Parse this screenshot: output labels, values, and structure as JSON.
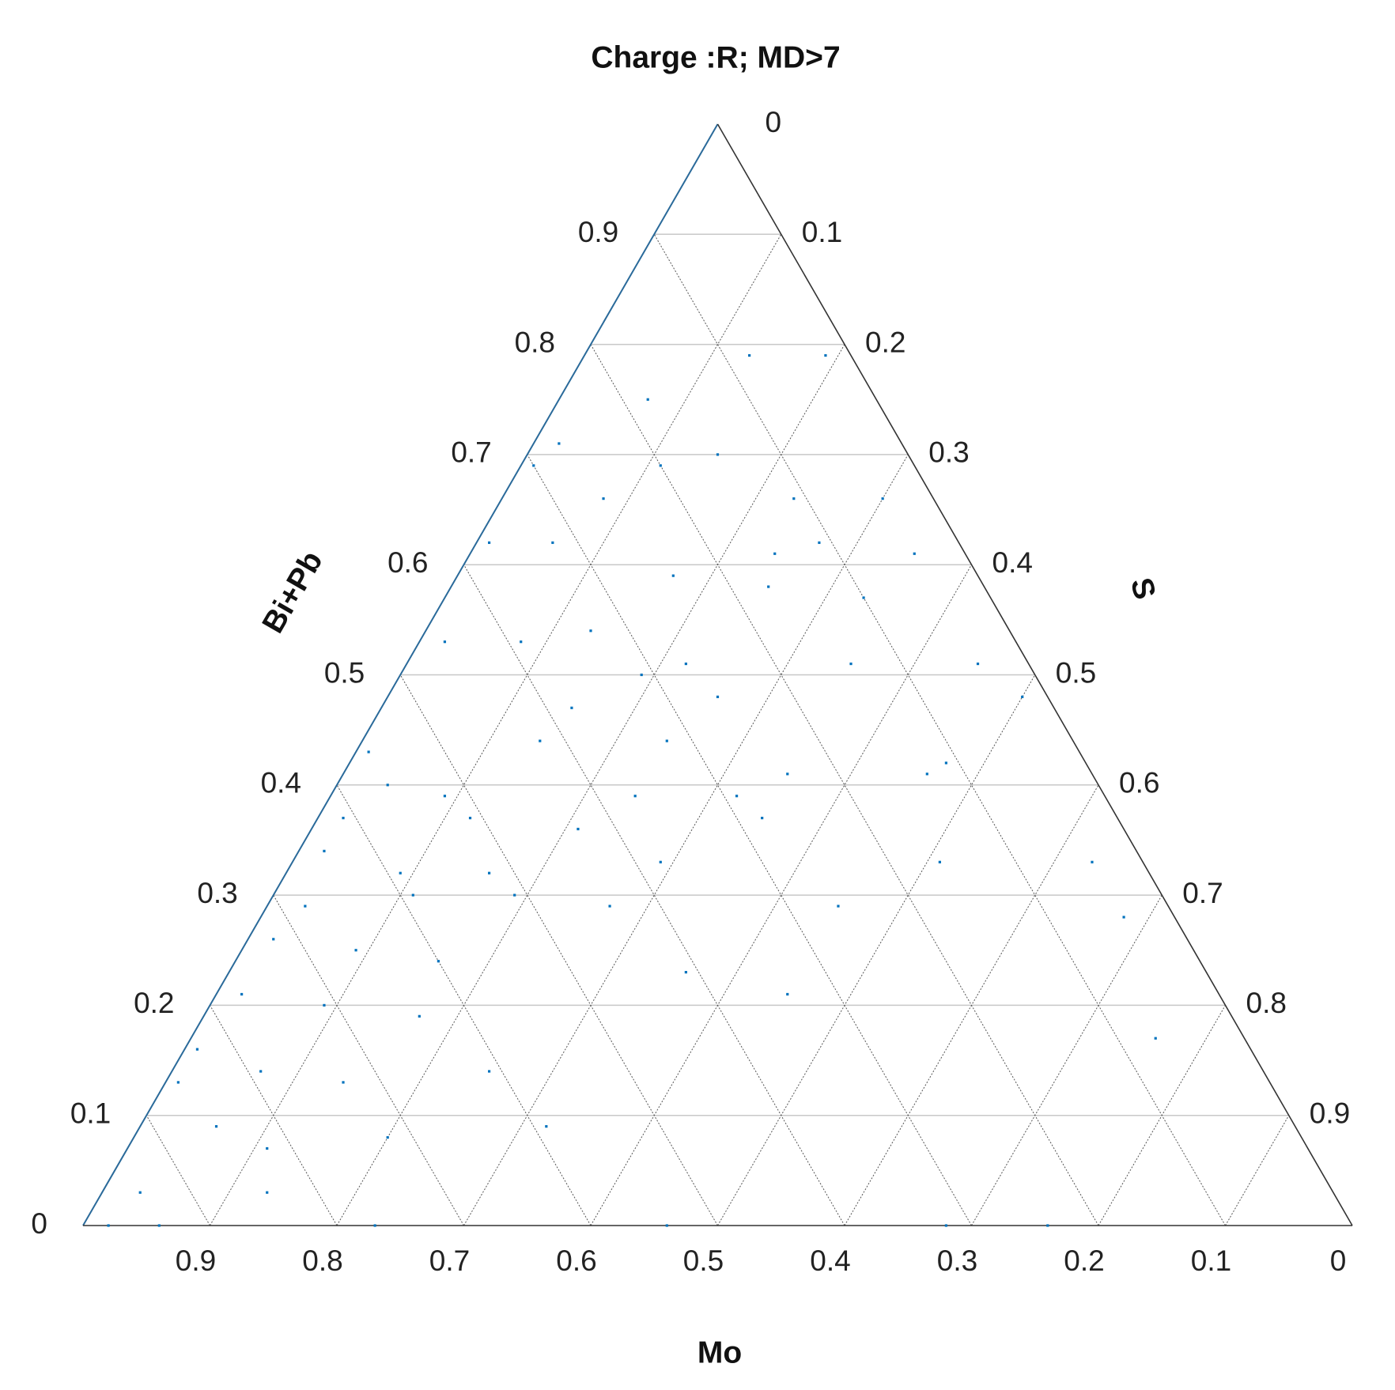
{
  "chart_data": {
    "type": "ternary",
    "title": "Charge :R; MD>7",
    "axes": {
      "mo": {
        "label": "Mo",
        "lim": [
          0,
          1
        ],
        "ticks": [
          0.9,
          0.8,
          0.7,
          0.6,
          0.5,
          0.4,
          0.3,
          0.2,
          0.1,
          0
        ]
      },
      "bi_pb": {
        "label": "Bi+Pb",
        "lim": [
          0,
          1
        ],
        "ticks": [
          0,
          0.1,
          0.2,
          0.3,
          0.4,
          0.5,
          0.6,
          0.7,
          0.8,
          0.9
        ]
      },
      "s": {
        "label": "S",
        "lim": [
          0,
          1
        ],
        "ticks": [
          0,
          0.1,
          0.2,
          0.3,
          0.4,
          0.5,
          0.6,
          0.7,
          0.8,
          0.9
        ]
      }
    },
    "grid": true,
    "color": "#0072bd",
    "points": {
      "mo": [
        0.08,
        0.02,
        0.18,
        0.27,
        0.2,
        0.15,
        0.3,
        0.11,
        0.04,
        0.26,
        0.11,
        0.15,
        0.04,
        0.24,
        0.32,
        0.37,
        0.17,
        0.1,
        0.39,
        0.45,
        0.31,
        0.27,
        0.14,
        0.04,
        0.38,
        0.26,
        0.02,
        0.42,
        0.32,
        0.24,
        0.13,
        0.56,
        0.56,
        0.52,
        0.37,
        0.61,
        0.51,
        0.43,
        0.28,
        0.64,
        0.59,
        0.52,
        0.38,
        0.16,
        0.04,
        0.68,
        0.59,
        0.51,
        0.26,
        0.04,
        0.72,
        0.66,
        0.6,
        0.41,
        0.77,
        0.71,
        0.34,
        0.83,
        0.79,
        0.73,
        0.61,
        0.07,
        0.86,
        0.85,
        0.82,
        0.72,
        0.59,
        0.94,
        0.84,
        0.98,
        0.94,
        0.77,
        0.54,
        0.32,
        0.24,
        0.64,
        0.44,
        0.29,
        0.33,
        0.11
      ],
      "bi_pb": [
        0.79,
        0.79,
        0.75,
        0.71,
        0.69,
        0.7,
        0.69,
        0.66,
        0.66,
        0.66,
        0.62,
        0.61,
        0.61,
        0.59,
        0.62,
        0.62,
        0.58,
        0.57,
        0.53,
        0.53,
        0.5,
        0.51,
        0.51,
        0.51,
        0.47,
        0.48,
        0.48,
        0.44,
        0.44,
        0.41,
        0.41,
        0.43,
        0.4,
        0.39,
        0.39,
        0.37,
        0.37,
        0.36,
        0.37,
        0.34,
        0.32,
        0.32,
        0.33,
        0.33,
        0.33,
        0.29,
        0.3,
        0.3,
        0.29,
        0.28,
        0.26,
        0.25,
        0.24,
        0.23,
        0.21,
        0.2,
        0.21,
        0.16,
        0.14,
        0.13,
        0.14,
        0.17,
        0.13,
        0.09,
        0.07,
        0.08,
        0.09,
        0.03,
        0.03,
        0,
        0,
        0,
        0,
        0,
        0,
        0.19,
        0.29,
        0.39,
        0.54,
        0.42
      ],
      "s": [
        0.13,
        0.19,
        0.07,
        0.02,
        0.11,
        0.15,
        0.01,
        0.23,
        0.3,
        0.08,
        0.27,
        0.24,
        0.35,
        0.17,
        0.06,
        0.01,
        0.25,
        0.33,
        0.08,
        0.02,
        0.19,
        0.22,
        0.35,
        0.45,
        0.15,
        0.26,
        0.5,
        0.14,
        0.24,
        0.35,
        0.46,
        0.01,
        0.04,
        0.09,
        0.24,
        0.02,
        0.12,
        0.21,
        0.35,
        0.02,
        0.09,
        0.16,
        0.29,
        0.51,
        0.63,
        0.03,
        0.11,
        0.19,
        0.45,
        0.68,
        0.02,
        0.09,
        0.16,
        0.36,
        0.02,
        0.09,
        0.45,
        0.01,
        0.07,
        0.14,
        0.25,
        0.76,
        0.01,
        0.06,
        0.11,
        0.2,
        0.32,
        0.03,
        0.13,
        0.02,
        0.06,
        0.23,
        0.46,
        0.68,
        0.76,
        0.17,
        0.27,
        0.32,
        0.13,
        0.47
      ]
    }
  }
}
